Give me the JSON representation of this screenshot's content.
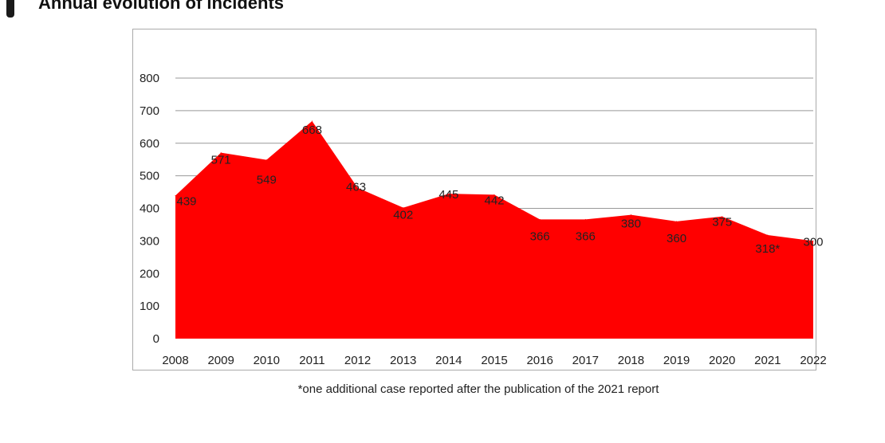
{
  "header": {
    "title": "Annual evolution of incidents"
  },
  "footnote": "*one additional case reported after the publication of the 2021 report",
  "chart_data": {
    "type": "area",
    "title": "Annual evolution of incidents",
    "xlabel": "",
    "ylabel": "",
    "x": [
      "2008",
      "2009",
      "2010",
      "2011",
      "2012",
      "2013",
      "2014",
      "2015",
      "2016",
      "2017",
      "2018",
      "2019",
      "2020",
      "2021",
      "2022"
    ],
    "series": [
      {
        "values": [
          439,
          571,
          549,
          668,
          463,
          402,
          445,
          442,
          366,
          366,
          380,
          360,
          375,
          318,
          300
        ],
        "color": "#ff0000"
      }
    ],
    "data_labels": [
      "439",
      "571",
      "549",
      "668",
      "463",
      "402",
      "445",
      "442",
      "366",
      "366",
      "380",
      "360",
      "375",
      "318*",
      "300"
    ],
    "ylim": [
      0,
      800
    ],
    "yticks": [
      "0",
      "100",
      "200",
      "300",
      "400",
      "500",
      "600",
      "700",
      "800"
    ],
    "grid": true,
    "legend": "none"
  }
}
